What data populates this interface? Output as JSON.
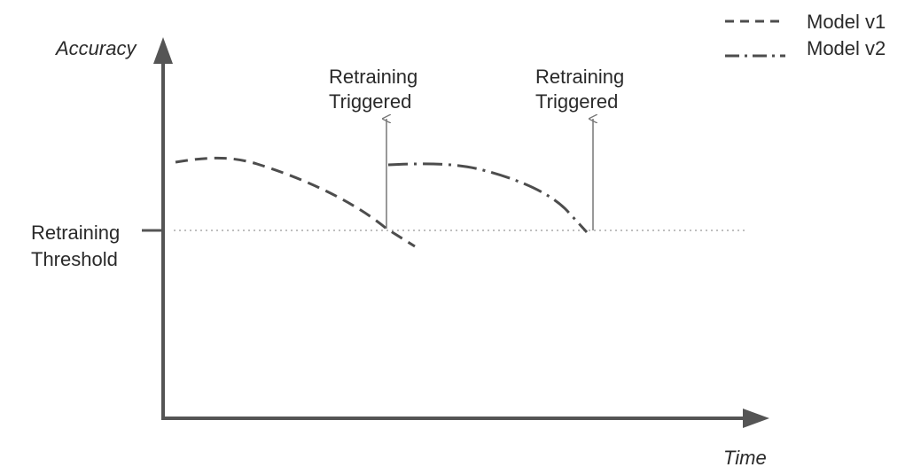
{
  "axes": {
    "y_label": "Accuracy",
    "x_label": "Time"
  },
  "threshold": {
    "label_line1": "Retraining",
    "label_line2": "Threshold"
  },
  "triggers": [
    {
      "label_line1": "Retraining",
      "label_line2": "Triggered"
    },
    {
      "label_line1": "Retraining",
      "label_line2": "Triggered"
    }
  ],
  "legend": {
    "items": [
      {
        "name": "Model v1",
        "style": "dashed"
      },
      {
        "name": "Model v2",
        "style": "dash-dot"
      }
    ]
  },
  "colors": {
    "axis": "#555555",
    "curve": "#4d4d4d",
    "threshold_line": "#aaaaaa",
    "trigger_arrow": "#777777",
    "text": "#2a2a2a"
  }
}
